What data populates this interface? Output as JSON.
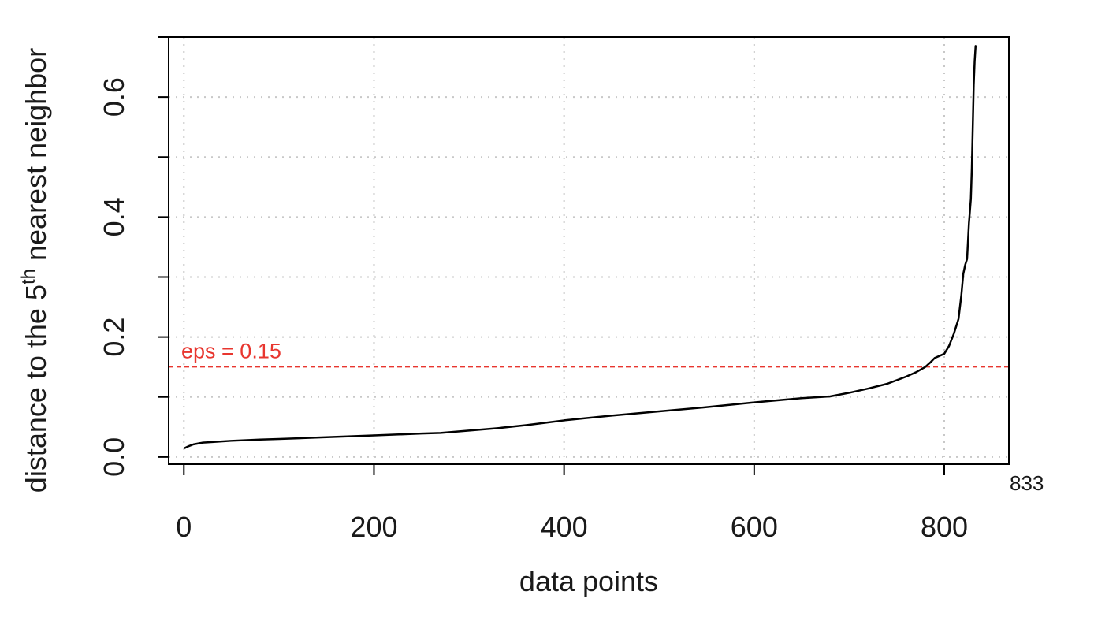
{
  "chart_data": {
    "type": "line",
    "title": "",
    "xlabel": "data points",
    "ylabel": {
      "prefix": "distance to the 5",
      "superscript": "th",
      "suffix": " nearest neighbor"
    },
    "xlim": [
      -16,
      868
    ],
    "ylim": [
      -0.012,
      0.7
    ],
    "x_ticks": [
      0,
      200,
      400,
      600,
      800
    ],
    "x_tick_labels": [
      "0",
      "200",
      "400",
      "600",
      "800"
    ],
    "y_ticks": [
      0.0,
      0.1,
      0.2,
      0.3,
      0.4,
      0.5,
      0.6,
      0.7
    ],
    "y_tick_labels": [
      "0.0",
      "",
      "0.2",
      "",
      "0.4",
      "",
      "0.6",
      ""
    ],
    "grid": true,
    "corner_label": "833",
    "line_color": "#000000",
    "series": [
      {
        "x": [
          1,
          5,
          10,
          20,
          30,
          50,
          80,
          100,
          150,
          200,
          250,
          270,
          300,
          330,
          360,
          380,
          400,
          450,
          500,
          550,
          600,
          650,
          680,
          700,
          720,
          740,
          760,
          770,
          780,
          785,
          790,
          800,
          805,
          810,
          815,
          818,
          820,
          822,
          824,
          826,
          828,
          829,
          830,
          831,
          832,
          833
        ],
        "y": [
          0.015,
          0.018,
          0.021,
          0.024,
          0.025,
          0.027,
          0.029,
          0.03,
          0.033,
          0.036,
          0.039,
          0.04,
          0.044,
          0.048,
          0.053,
          0.057,
          0.061,
          0.069,
          0.076,
          0.083,
          0.091,
          0.098,
          0.101,
          0.107,
          0.114,
          0.122,
          0.134,
          0.141,
          0.15,
          0.157,
          0.165,
          0.172,
          0.185,
          0.205,
          0.23,
          0.27,
          0.305,
          0.32,
          0.33,
          0.39,
          0.43,
          0.48,
          0.55,
          0.62,
          0.66,
          0.685
        ]
      }
    ],
    "annotations": [
      {
        "type": "hline",
        "y": 0.15,
        "label": "eps = 0.15",
        "color": "#e8362f"
      }
    ]
  }
}
